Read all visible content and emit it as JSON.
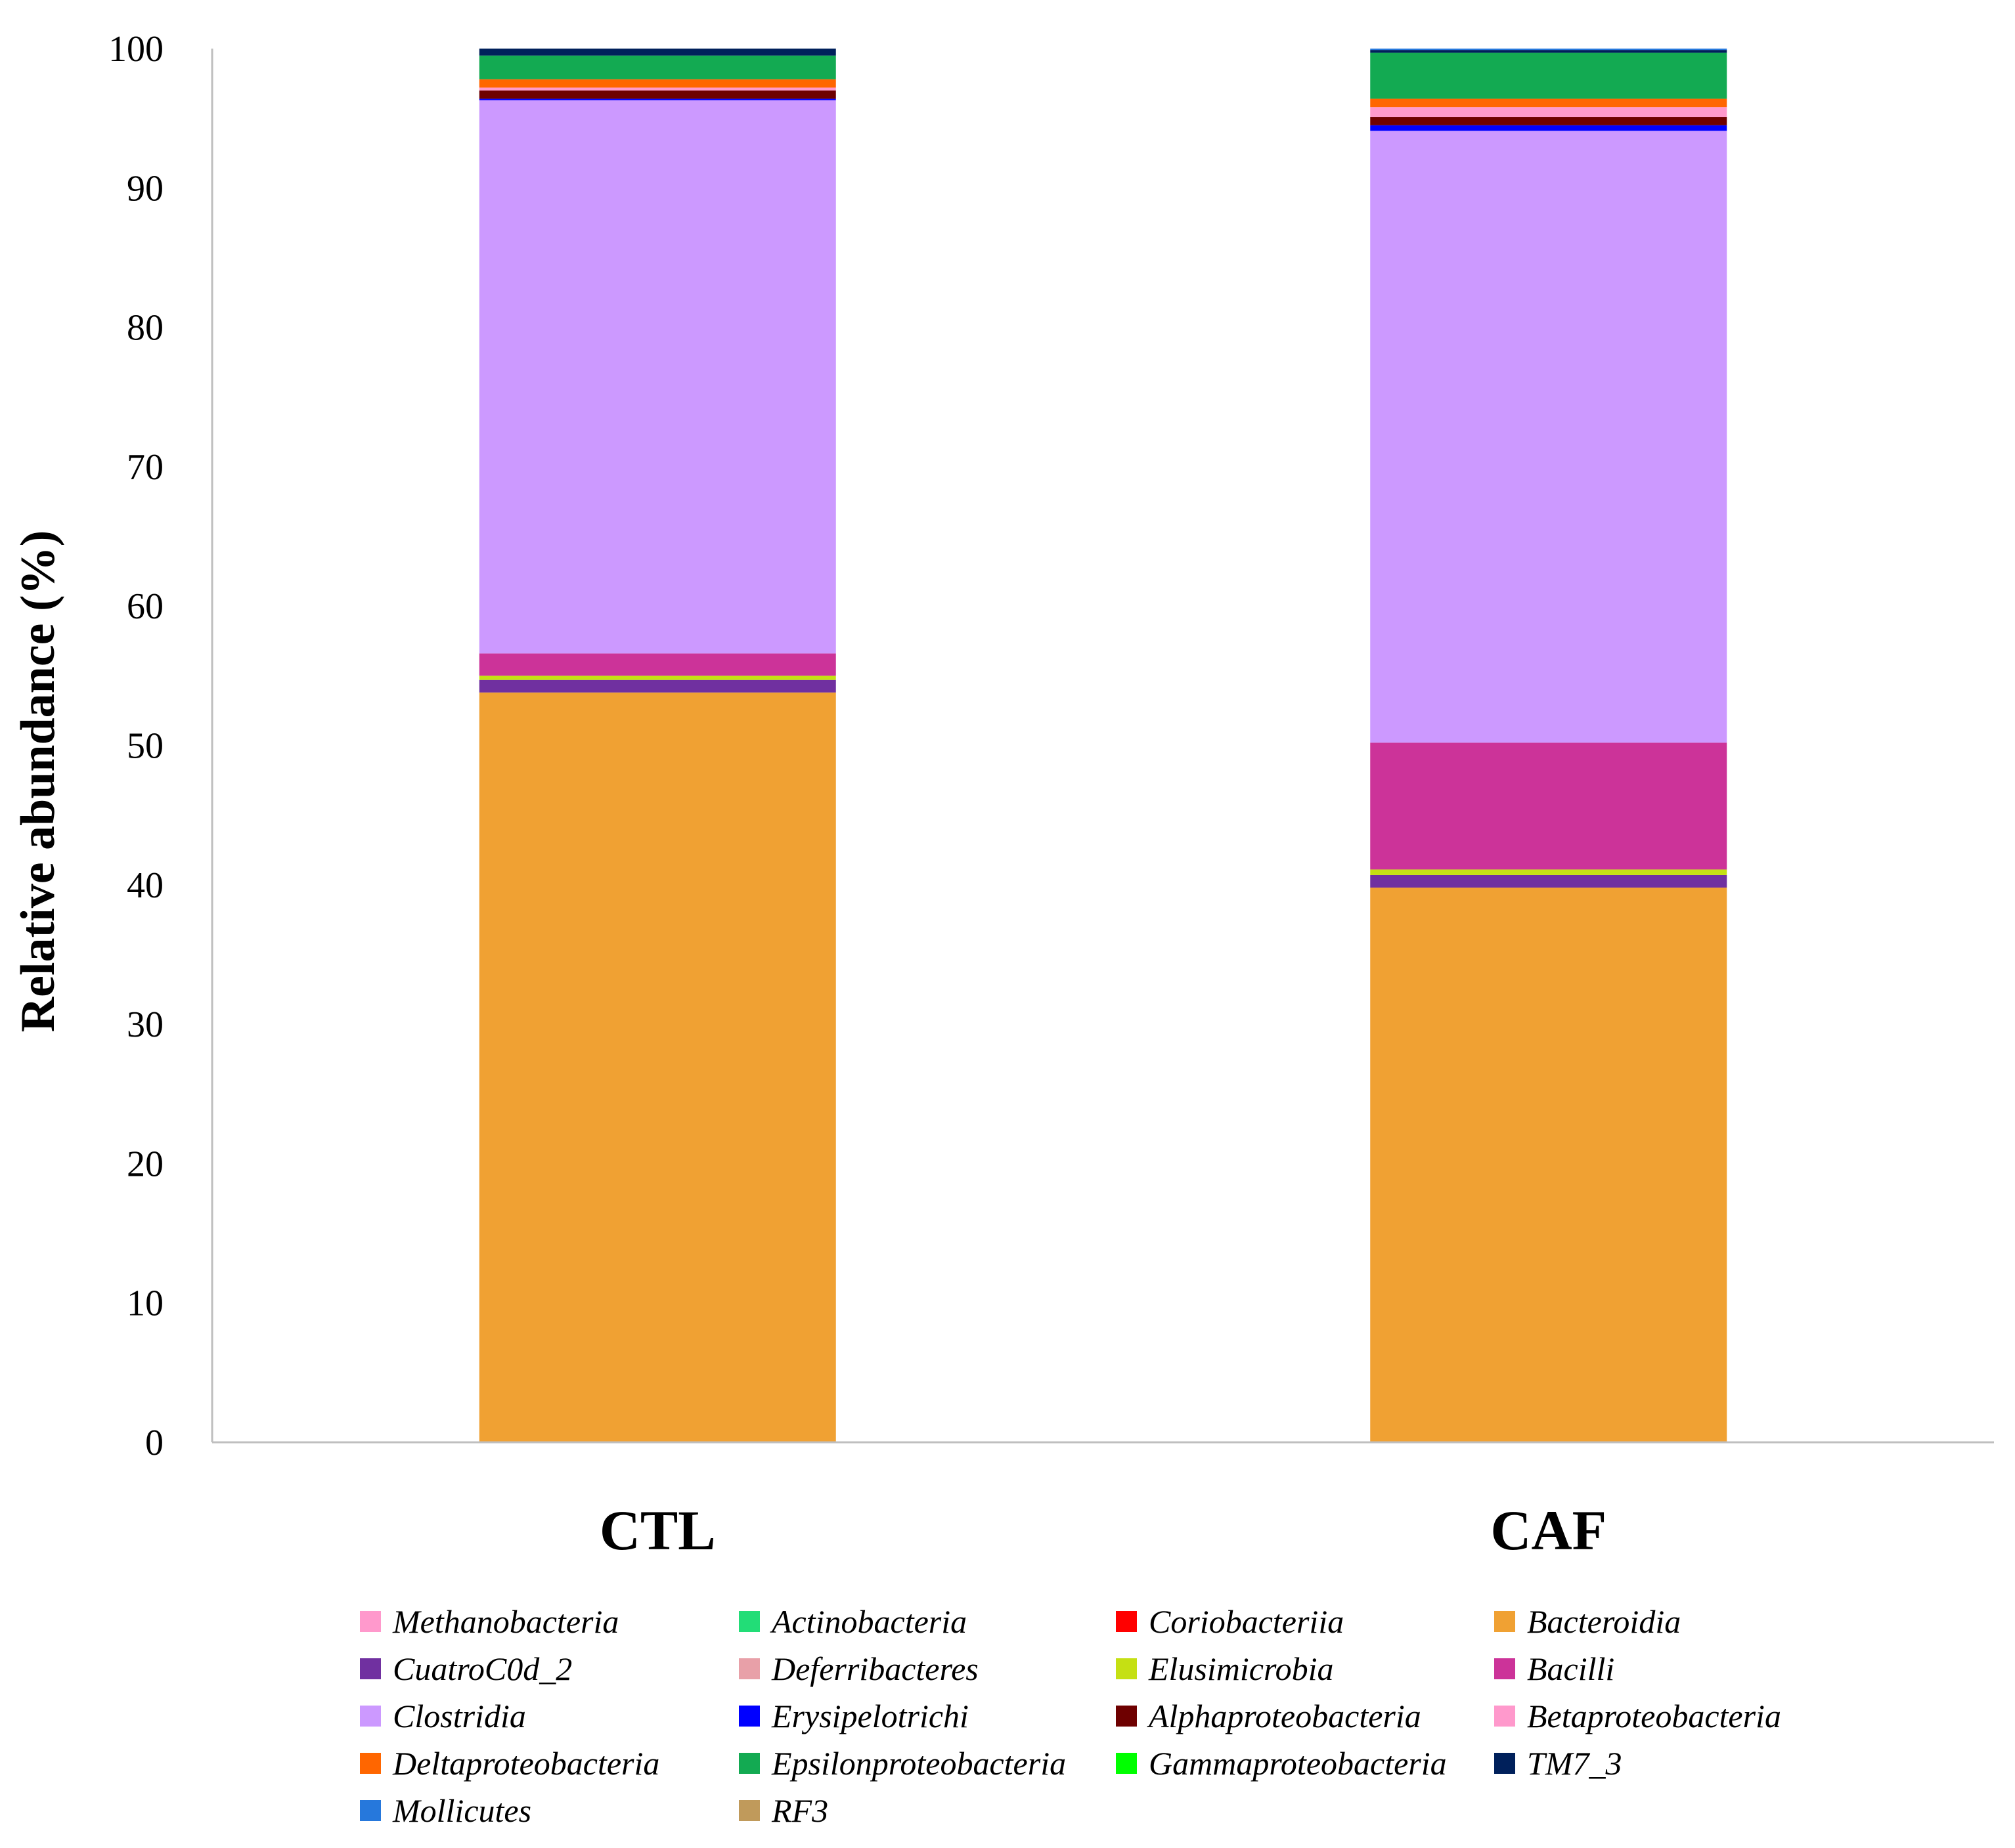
{
  "chart_data": {
    "type": "bar",
    "stacked": true,
    "title": "",
    "xlabel": "",
    "ylabel": "Relative abundance (%)",
    "ylim": [
      0,
      100
    ],
    "yticks": [
      0,
      10,
      20,
      30,
      40,
      50,
      60,
      70,
      80,
      90,
      100
    ],
    "categories": [
      "CTL",
      "CAF"
    ],
    "legend_position": "bottom",
    "series": [
      {
        "name": "Bacteroidia",
        "color": "#F0A133",
        "values": [
          53.8,
          39.8
        ]
      },
      {
        "name": "CuatroC0d_2",
        "color": "#7030A0",
        "values": [
          0.9,
          0.9
        ]
      },
      {
        "name": "Elusimicrobia",
        "color": "#C5E013",
        "values": [
          0.3,
          0.4
        ]
      },
      {
        "name": "Bacilli",
        "color": "#CC3399",
        "values": [
          1.6,
          9.1
        ]
      },
      {
        "name": "Clostridia",
        "color": "#CC99FF",
        "values": [
          39.7,
          43.9
        ]
      },
      {
        "name": "Erysipelotrichi",
        "color": "#0000FF",
        "values": [
          0.1,
          0.4
        ]
      },
      {
        "name": "Alphaproteobacteria",
        "color": "#6E0000",
        "values": [
          0.6,
          0.6
        ]
      },
      {
        "name": "Betaproteobacteria",
        "color": "#FF99CC",
        "values": [
          0.2,
          0.7
        ]
      },
      {
        "name": "Deltaproteobacteria",
        "color": "#FF6600",
        "values": [
          0.6,
          0.6
        ]
      },
      {
        "name": "Epsilonproteobacteria",
        "color": "#13AA52",
        "values": [
          1.7,
          3.3
        ]
      },
      {
        "name": "Gammaproteobacteria",
        "color": "#00FF00",
        "values": [
          0.0,
          0.0
        ]
      },
      {
        "name": "TM7_3",
        "color": "#00205B",
        "values": [
          0.5,
          0.2
        ]
      },
      {
        "name": "Mollicutes",
        "color": "#2678DC",
        "values": [
          0.0,
          0.1
        ]
      },
      {
        "name": "RF3",
        "color": "#C09A5B",
        "values": [
          0.0,
          0.0
        ]
      },
      {
        "name": "Methanobacteria",
        "color": "#FF99CC",
        "values": [
          0.0,
          0.0
        ]
      },
      {
        "name": "Actinobacteria",
        "color": "#22DD77",
        "values": [
          0.0,
          0.0
        ]
      },
      {
        "name": "Coriobacteriia",
        "color": "#FF0000",
        "values": [
          0.0,
          0.0
        ]
      },
      {
        "name": "Deferribacteres",
        "color": "#E8A0A8",
        "values": [
          0.0,
          0.0
        ]
      }
    ],
    "legend": [
      {
        "name": "Methanobacteria",
        "color": "#FF99CC"
      },
      {
        "name": "Actinobacteria",
        "color": "#22DD77"
      },
      {
        "name": "Coriobacteriia",
        "color": "#FF0000"
      },
      {
        "name": "Bacteroidia",
        "color": "#F0A133"
      },
      {
        "name": "CuatroC0d_2",
        "color": "#7030A0"
      },
      {
        "name": "Deferribacteres",
        "color": "#E8A0A8"
      },
      {
        "name": "Elusimicrobia",
        "color": "#C5E013"
      },
      {
        "name": "Bacilli",
        "color": "#CC3399"
      },
      {
        "name": "Clostridia",
        "color": "#CC99FF"
      },
      {
        "name": "Erysipelotrichi",
        "color": "#0000FF"
      },
      {
        "name": "Alphaproteobacteria",
        "color": "#6E0000"
      },
      {
        "name": "Betaproteobacteria",
        "color": "#FF99CC"
      },
      {
        "name": "Deltaproteobacteria",
        "color": "#FF6600"
      },
      {
        "name": "Epsilonproteobacteria",
        "color": "#13AA52"
      },
      {
        "name": "Gammaproteobacteria",
        "color": "#00FF00"
      },
      {
        "name": "TM7_3",
        "color": "#00205B"
      },
      {
        "name": "Mollicutes",
        "color": "#2678DC"
      },
      {
        "name": "RF3",
        "color": "#C09A5B"
      }
    ]
  }
}
